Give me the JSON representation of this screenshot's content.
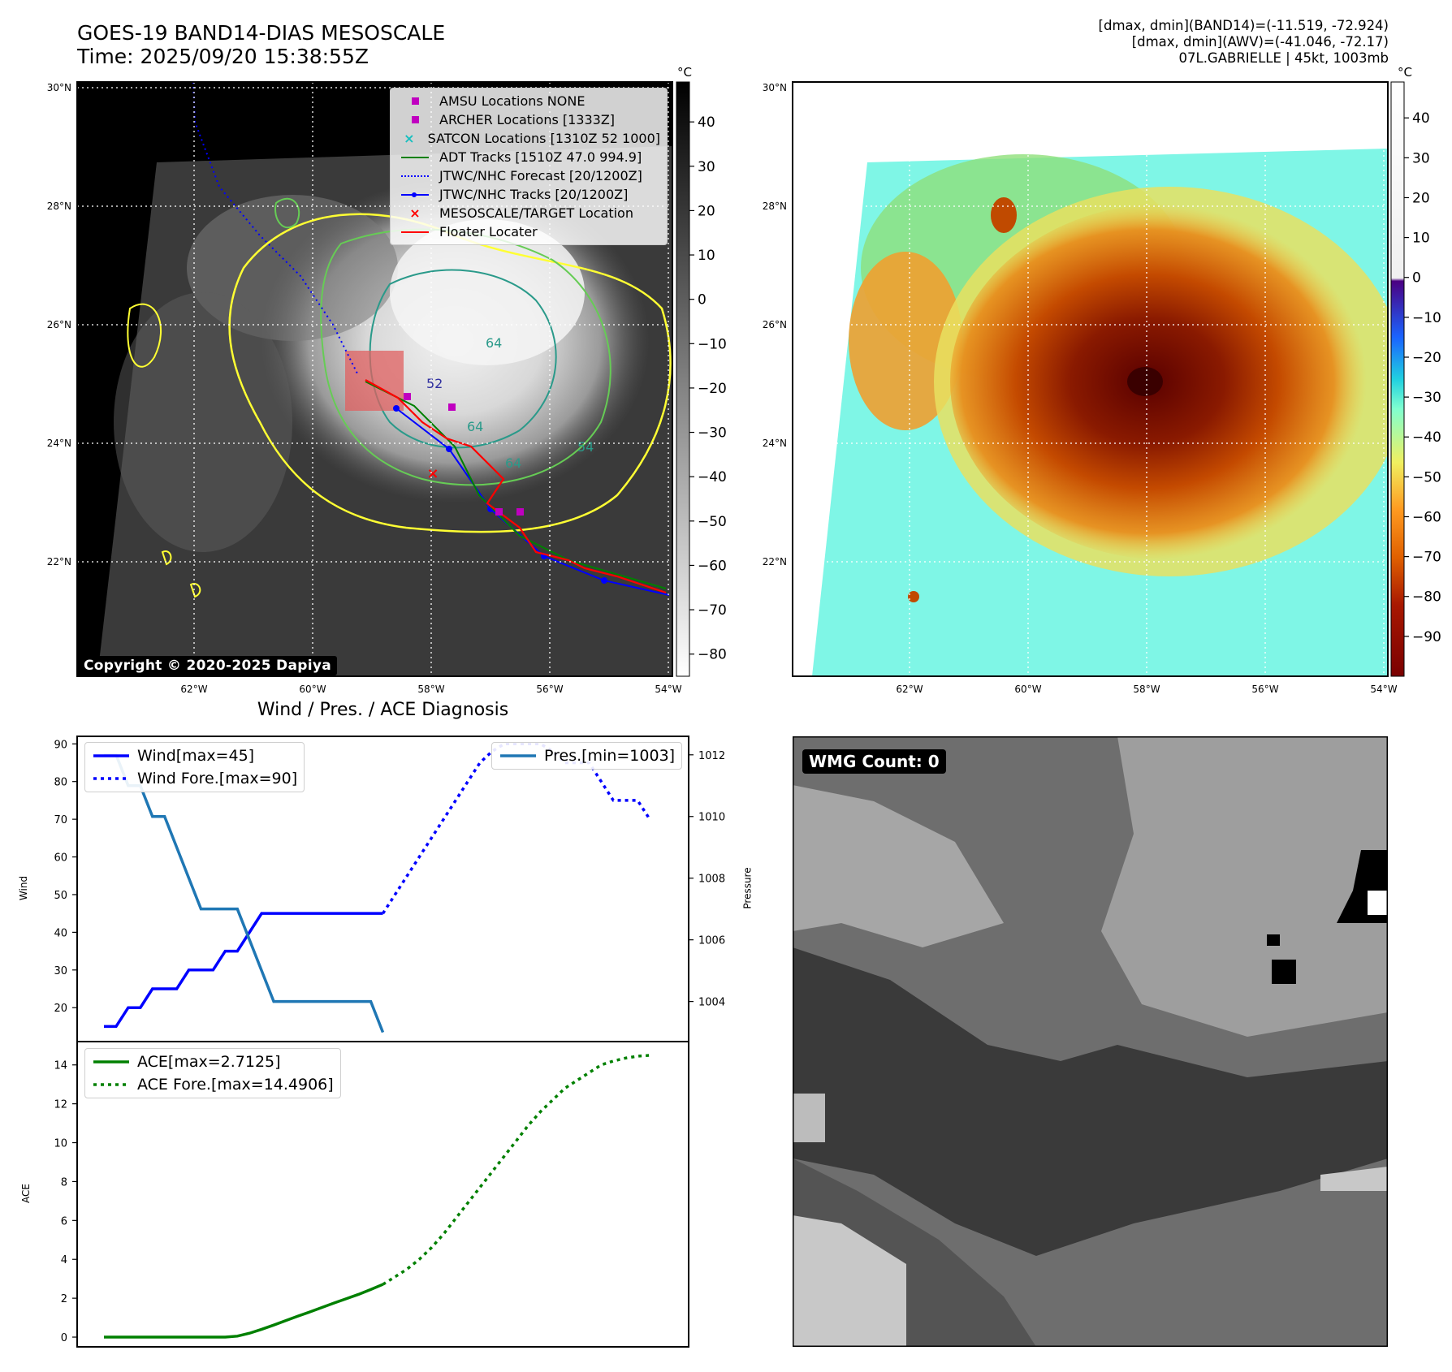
{
  "header": {
    "title_line1": "GOES-19 BAND14-DIAS MESOSCALE",
    "title_line2": "Time: 2025/09/20 15:38:55Z",
    "info_line1": "[dmax, dmin](BAND14)=(-11.519, -72.924)",
    "info_line2": "[dmax, dmin](AWV)=(-41.046, -72.17)",
    "info_line3": "07L.GABRIELLE | 45kt, 1003mb"
  },
  "map": {
    "lat_labels": [
      "30°N",
      "28°N",
      "26°N",
      "24°N",
      "22°N"
    ],
    "lon_labels": [
      "62°W",
      "60°W",
      "58°W",
      "56°W",
      "54°W"
    ],
    "copyright": "Copyright © 2020-2025 Dapiya",
    "contour_labels": [
      "64",
      "64",
      "64",
      "54",
      "52"
    ],
    "legend": [
      {
        "label": "AMSU Locations NONE",
        "symbol": "square",
        "color": "#c000c0"
      },
      {
        "label": "ARCHER Locations [1333Z]",
        "symbol": "square",
        "color": "#c000c0"
      },
      {
        "label": "SATCON Locations [1310Z 52 1000]",
        "symbol": "x",
        "color": "#17bfbf"
      },
      {
        "label": "ADT Tracks [1510Z 47.0 994.9]",
        "symbol": "line",
        "color": "#008000"
      },
      {
        "label": "JTWC/NHC Forecast [20/1200Z]",
        "symbol": "dotted",
        "color": "#0000ff"
      },
      {
        "label": "JTWC/NHC Tracks [20/1200Z]",
        "symbol": "line-dot",
        "color": "#0000ff"
      },
      {
        "label": "MESOSCALE/TARGET Location",
        "symbol": "x",
        "color": "#ff0000"
      },
      {
        "label": "Floater Locater",
        "symbol": "line",
        "color": "#ff0000"
      }
    ]
  },
  "colorbar_left": {
    "unit": "°C",
    "ticks": [
      "40",
      "30",
      "20",
      "10",
      "0",
      "−10",
      "−20",
      "−30",
      "−40",
      "−50",
      "−60",
      "−70",
      "−80"
    ]
  },
  "colorbar_right": {
    "unit": "°C",
    "ticks": [
      "40",
      "30",
      "20",
      "10",
      "0",
      "−10",
      "−20",
      "−30",
      "−40",
      "−50",
      "−60",
      "−70",
      "−80",
      "−90"
    ]
  },
  "wmg": {
    "label": "WMG Count: 0"
  },
  "chart_data": [
    {
      "type": "line",
      "title": "Wind / Pres. / ACE Diagnosis",
      "ylabel": "Wind",
      "ylabel_right": "Pressure",
      "ylim": [
        11,
        92
      ],
      "ylim_right": [
        1002.7,
        1012.6
      ],
      "yticks": [
        "20",
        "30",
        "40",
        "50",
        "60",
        "70",
        "80",
        "90"
      ],
      "yticks_right": [
        "1004",
        "1006",
        "1008",
        "1010",
        "1012"
      ],
      "series": [
        {
          "name": "Wind[max=45]",
          "color": "#0000ff",
          "style": "solid",
          "x": [
            0,
            1,
            2,
            3,
            4,
            5,
            6,
            7,
            8,
            9,
            10,
            11,
            12,
            13,
            14,
            15,
            16,
            17,
            18,
            19,
            20,
            21,
            22,
            23
          ],
          "values": [
            15,
            15,
            20,
            20,
            25,
            25,
            25,
            30,
            30,
            30,
            35,
            35,
            40,
            45,
            45,
            45,
            45,
            45,
            45,
            45,
            45,
            45,
            45,
            45
          ]
        },
        {
          "name": "Wind Fore.[max=90]",
          "color": "#0000ff",
          "style": "dotted",
          "x": [
            23,
            24,
            25,
            26,
            27,
            28,
            29,
            30,
            31,
            32,
            33,
            34,
            35,
            36,
            37,
            38,
            39,
            40,
            41,
            42,
            43,
            44,
            45
          ],
          "values": [
            45,
            50,
            55,
            60,
            65,
            70,
            75,
            80,
            85,
            88,
            90,
            90,
            90,
            90,
            88,
            85,
            85,
            85,
            80,
            75,
            75,
            75,
            70
          ]
        },
        {
          "name": "Pres.[min=1003]",
          "color": "#1f77b4",
          "style": "solid",
          "x": [
            0,
            1,
            2,
            3,
            4,
            5,
            6,
            7,
            8,
            9,
            10,
            11,
            12,
            13,
            14,
            15,
            16,
            17,
            18,
            19,
            20,
            21,
            22,
            23
          ],
          "values": [
            1012,
            1012,
            1011,
            1011,
            1010,
            1010,
            1009,
            1008,
            1007,
            1007,
            1007,
            1007,
            1006,
            1005,
            1004,
            1004,
            1004,
            1004,
            1004,
            1004,
            1004,
            1004,
            1004,
            1003
          ]
        }
      ]
    },
    {
      "type": "line",
      "ylabel": "ACE",
      "ylim": [
        -0.5,
        15.2
      ],
      "yticks": [
        "0",
        "2",
        "4",
        "6",
        "8",
        "10",
        "12",
        "14"
      ],
      "series": [
        {
          "name": "ACE[max=2.7125]",
          "color": "#008000",
          "style": "solid",
          "x": [
            0,
            10,
            11,
            12,
            13,
            14,
            15,
            16,
            17,
            18,
            19,
            20,
            21,
            22,
            23
          ],
          "values": [
            0,
            0,
            0.05,
            0.2,
            0.4,
            0.62,
            0.85,
            1.08,
            1.3,
            1.53,
            1.76,
            1.98,
            2.2,
            2.45,
            2.7125
          ]
        },
        {
          "name": "ACE Fore.[max=14.4906]",
          "color": "#008000",
          "style": "dotted",
          "x": [
            23,
            24,
            25,
            26,
            27,
            28,
            29,
            30,
            31,
            32,
            33,
            34,
            35,
            36,
            37,
            38,
            39,
            40,
            41,
            42,
            43,
            44,
            45
          ],
          "values": [
            2.7125,
            3.1,
            3.5,
            4.0,
            4.6,
            5.3,
            6.1,
            6.9,
            7.7,
            8.5,
            9.3,
            10.1,
            10.9,
            11.6,
            12.2,
            12.8,
            13.2,
            13.6,
            14.0,
            14.2,
            14.35,
            14.45,
            14.4906
          ]
        }
      ]
    }
  ]
}
